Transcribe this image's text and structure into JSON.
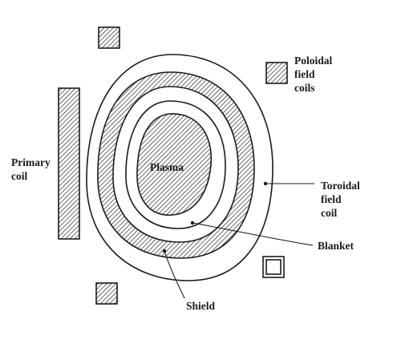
{
  "labels": {
    "poloidal_field_coils": [
      "Poloidal",
      "field",
      "coils"
    ],
    "primary_coil": [
      "Primary",
      "coil"
    ],
    "plasma": "Plasma",
    "toroidal_field_coil": [
      "Toroidal",
      "field",
      "coil"
    ],
    "blanket": "Blanket",
    "shield": "Shield"
  },
  "colors": {
    "ink": "#1a1a1a",
    "background": "#ffffff"
  }
}
